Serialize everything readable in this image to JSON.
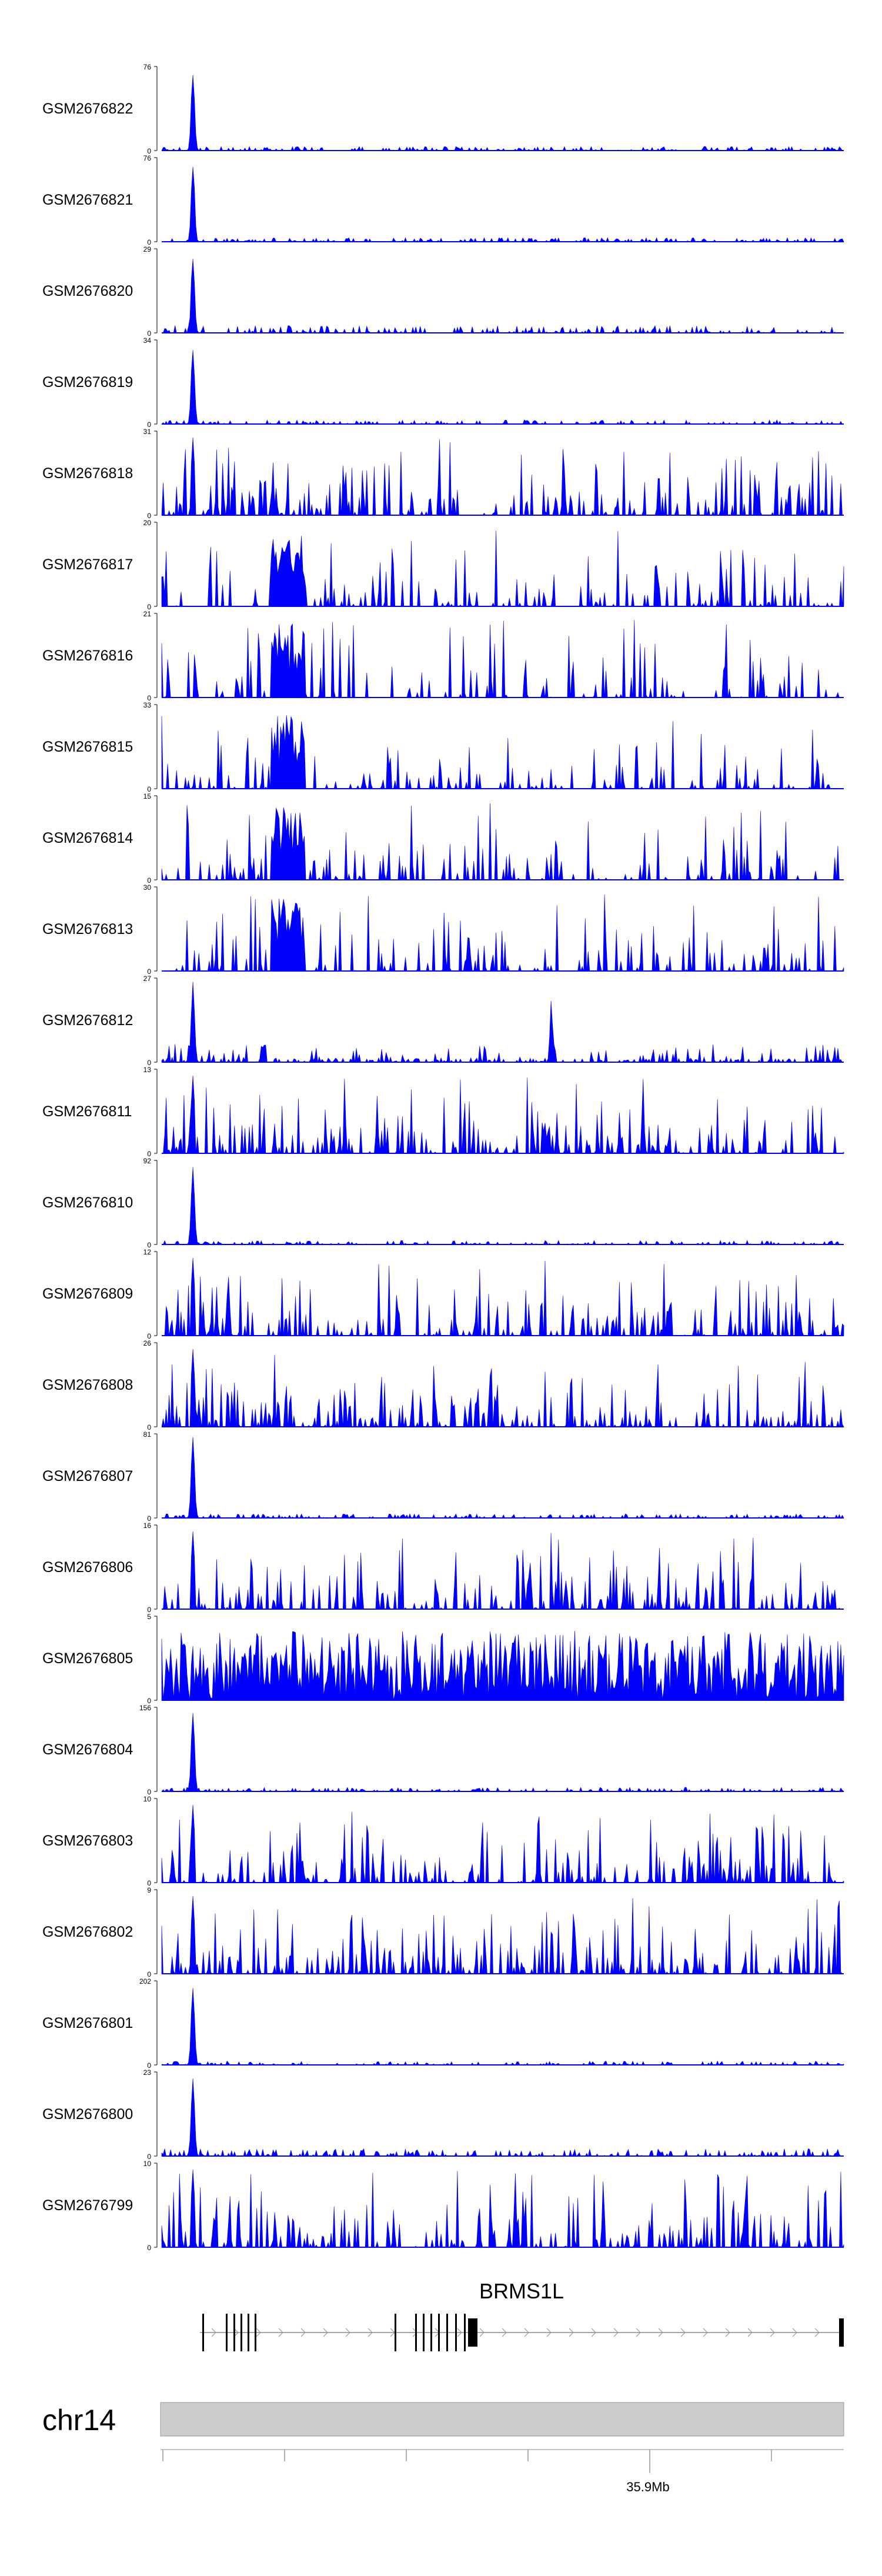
{
  "chart_data": {
    "type": "area",
    "color": "#0000ff",
    "chromosome": "chr14",
    "gene": {
      "name": "BRMS1L"
    },
    "x_axis": {
      "labeled_tick": "35.9Mb"
    },
    "tracks": [
      {
        "name": "GSM2676822",
        "ymax": "76",
        "ymin": "0",
        "profile": "peak"
      },
      {
        "name": "GSM2676821",
        "ymax": "76",
        "ymin": "0",
        "profile": "peak"
      },
      {
        "name": "GSM2676820",
        "ymax": "29",
        "ymin": "0",
        "profile": "peak-bg"
      },
      {
        "name": "GSM2676819",
        "ymax": "34",
        "ymin": "0",
        "profile": "peak"
      },
      {
        "name": "GSM2676818",
        "ymax": "31",
        "ymin": "0",
        "profile": "noisy"
      },
      {
        "name": "GSM2676817",
        "ymax": "20",
        "ymin": "0",
        "profile": "broad"
      },
      {
        "name": "GSM2676816",
        "ymax": "21",
        "ymin": "0",
        "profile": "broad"
      },
      {
        "name": "GSM2676815",
        "ymax": "33",
        "ymin": "0",
        "profile": "broad"
      },
      {
        "name": "GSM2676814",
        "ymax": "15",
        "ymin": "0",
        "profile": "broad"
      },
      {
        "name": "GSM2676813",
        "ymax": "30",
        "ymin": "0",
        "profile": "broad"
      },
      {
        "name": "GSM2676812",
        "ymax": "27",
        "ymin": "0",
        "profile": "peak-mid"
      },
      {
        "name": "GSM2676811",
        "ymax": "13",
        "ymin": "0",
        "profile": "noisy"
      },
      {
        "name": "GSM2676810",
        "ymax": "92",
        "ymin": "0",
        "profile": "peak"
      },
      {
        "name": "GSM2676809",
        "ymax": "12",
        "ymin": "0",
        "profile": "noisy"
      },
      {
        "name": "GSM2676808",
        "ymax": "26",
        "ymin": "0",
        "profile": "noisy"
      },
      {
        "name": "GSM2676807",
        "ymax": "81",
        "ymin": "0",
        "profile": "peak"
      },
      {
        "name": "GSM2676806",
        "ymax": "16",
        "ymin": "0",
        "profile": "noisy"
      },
      {
        "name": "GSM2676805",
        "ymax": "5",
        "ymin": "0",
        "profile": "dense"
      },
      {
        "name": "GSM2676804",
        "ymax": "156",
        "ymin": "0",
        "profile": "peak"
      },
      {
        "name": "GSM2676803",
        "ymax": "10",
        "ymin": "0",
        "profile": "noisy"
      },
      {
        "name": "GSM2676802",
        "ymax": "9",
        "ymin": "0",
        "profile": "noisy"
      },
      {
        "name": "GSM2676801",
        "ymax": "202",
        "ymin": "0",
        "profile": "peak"
      },
      {
        "name": "GSM2676800",
        "ymax": "23",
        "ymin": "0",
        "profile": "peak-bg"
      },
      {
        "name": "GSM2676799",
        "ymax": "10",
        "ymin": "0",
        "profile": "noisy"
      }
    ]
  }
}
